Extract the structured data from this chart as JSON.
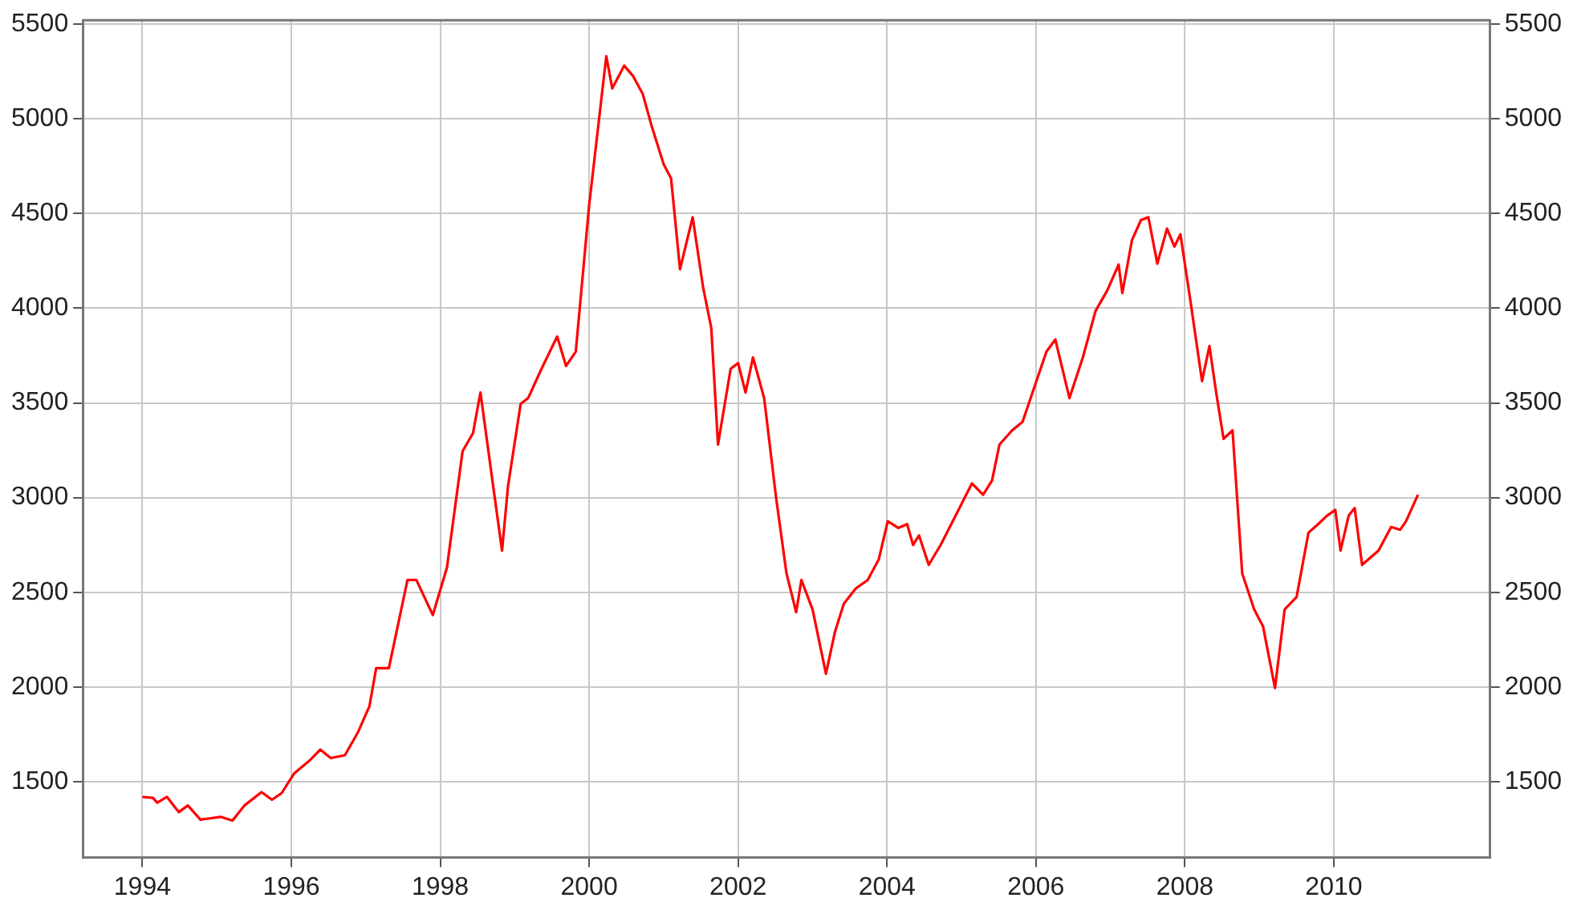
{
  "chart_data": {
    "type": "line",
    "xlim": [
      1993.2,
      2012.1
    ],
    "xticks": [
      1994,
      1996,
      1998,
      2000,
      2002,
      2004,
      2006,
      2008,
      2010
    ],
    "ylim": [
      1100,
      5520
    ],
    "yticks": [
      1500,
      2000,
      2500,
      3000,
      3500,
      4000,
      4500,
      5000,
      5500
    ],
    "y2lim": [
      1100,
      5520
    ],
    "y2ticks": [
      1500,
      2000,
      2500,
      3000,
      3500,
      4000,
      4500,
      5000,
      5500
    ],
    "grid": true,
    "legend": false,
    "marker": "none",
    "line_style": "solid",
    "series": [
      {
        "color": "#ff0000",
        "x": [
          1994.0,
          1994.14,
          1994.2,
          1994.33,
          1994.49,
          1994.61,
          1994.78,
          1995.05,
          1995.21,
          1995.37,
          1995.6,
          1995.74,
          1995.87,
          1996.04,
          1996.24,
          1996.39,
          1996.53,
          1996.72,
          1996.9,
          1997.05,
          1997.14,
          1997.31,
          1997.56,
          1997.68,
          1997.9,
          1998.09,
          1998.3,
          1998.44,
          1998.54,
          1998.69,
          1998.83,
          1998.91,
          1999.08,
          1999.18,
          1999.36,
          1999.57,
          1999.69,
          1999.82,
          2000.0,
          2000.23,
          2000.31,
          2000.47,
          2000.59,
          2000.72,
          2000.84,
          2001.0,
          2001.1,
          2001.22,
          2001.39,
          2001.53,
          2001.64,
          2001.73,
          2001.9,
          2002.0,
          2002.1,
          2002.2,
          2002.35,
          2002.51,
          2002.65,
          2002.78,
          2002.85,
          2003.0,
          2003.18,
          2003.3,
          2003.42,
          2003.58,
          2003.74,
          2003.89,
          2004.01,
          2004.15,
          2004.27,
          2004.35,
          2004.43,
          2004.56,
          2004.72,
          2004.96,
          2005.14,
          2005.29,
          2005.41,
          2005.51,
          2005.68,
          2005.82,
          2005.98,
          2006.14,
          2006.26,
          2006.45,
          2006.63,
          2006.8,
          2006.96,
          2007.11,
          2007.16,
          2007.29,
          2007.41,
          2007.51,
          2007.63,
          2007.76,
          2007.86,
          2007.94,
          2008.07,
          2008.23,
          2008.33,
          2008.42,
          2008.52,
          2008.64,
          2008.77,
          2008.93,
          2009.05,
          2009.21,
          2009.34,
          2009.5,
          2009.66,
          2009.79,
          2009.91,
          2010.02,
          2010.09,
          2010.2,
          2010.28,
          2010.38,
          2010.6,
          2010.77,
          2010.89,
          2010.97,
          2011.13
        ],
        "values": [
          1420,
          1415,
          1390,
          1420,
          1340,
          1375,
          1300,
          1315,
          1295,
          1375,
          1445,
          1405,
          1440,
          1545,
          1610,
          1670,
          1625,
          1640,
          1765,
          1900,
          2100,
          2100,
          2565,
          2565,
          2380,
          2630,
          3245,
          3340,
          3555,
          3120,
          2720,
          3060,
          3495,
          3525,
          3680,
          3850,
          3695,
          3770,
          4545,
          5330,
          5160,
          5280,
          5225,
          5130,
          4960,
          4760,
          4685,
          4205,
          4480,
          4110,
          3895,
          3280,
          3680,
          3710,
          3555,
          3740,
          3525,
          3000,
          2600,
          2395,
          2565,
          2410,
          2070,
          2290,
          2440,
          2520,
          2565,
          2675,
          2875,
          2840,
          2860,
          2750,
          2800,
          2645,
          2750,
          2935,
          3075,
          3015,
          3090,
          3280,
          3355,
          3400,
          3585,
          3770,
          3835,
          3525,
          3740,
          3985,
          4095,
          4230,
          4080,
          4360,
          4465,
          4480,
          4235,
          4420,
          4325,
          4390,
          4050,
          3615,
          3800,
          3555,
          3310,
          3355,
          2600,
          2410,
          2320,
          1995,
          2410,
          2475,
          2815,
          2860,
          2905,
          2935,
          2720,
          2905,
          2945,
          2645,
          2720,
          2845,
          2830,
          2875,
          3015
        ]
      }
    ]
  }
}
